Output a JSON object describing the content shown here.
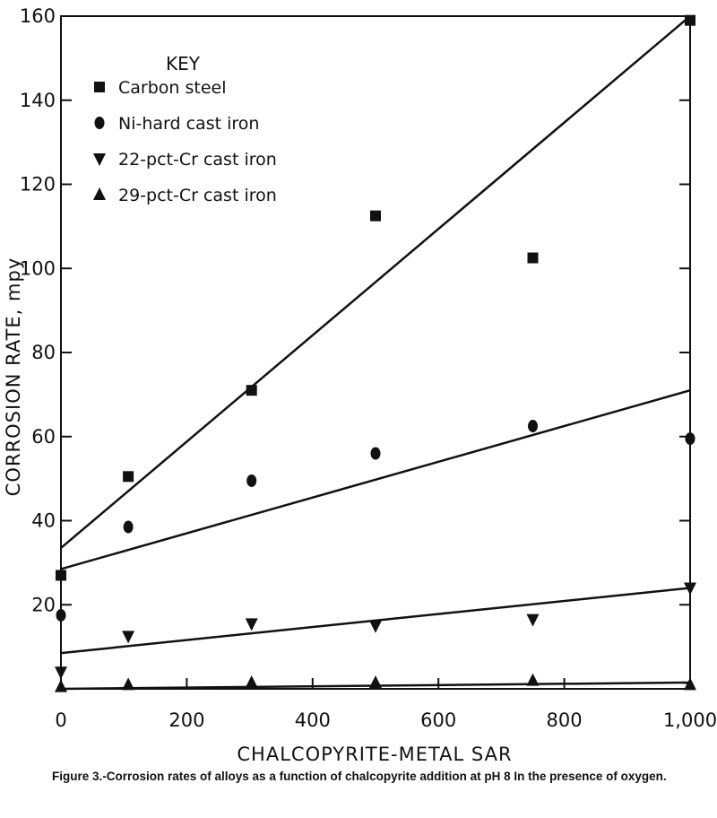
{
  "chart_data": {
    "type": "scatter",
    "xlabel": "CHALCOPYRITE-METAL SAR",
    "ylabel": "CORROSION RATE, mpy",
    "xlim": [
      0,
      1000
    ],
    "ylim": [
      0,
      160
    ],
    "x_ticks": [
      0,
      200,
      400,
      600,
      800,
      1000
    ],
    "x_tick_labels": [
      "0",
      "200",
      "400",
      "600",
      "800",
      "1,000"
    ],
    "y_ticks": [
      20,
      40,
      60,
      80,
      100,
      120,
      140,
      160
    ],
    "y_tick_labels": [
      "20",
      "40",
      "60",
      "80",
      "100",
      "120",
      "140",
      "160"
    ],
    "legend_title": "KEY",
    "legend_position": "top-left",
    "grid": false,
    "series": [
      {
        "name": "Carbon steel",
        "marker": "square",
        "points": [
          [
            0,
            27
          ],
          [
            107,
            50.5
          ],
          [
            303,
            71
          ],
          [
            500,
            112.5
          ],
          [
            750,
            102.5
          ],
          [
            1000,
            159
          ]
        ],
        "fit_line": [
          [
            0,
            33.5
          ],
          [
            1000,
            160
          ]
        ]
      },
      {
        "name": "Ni-hard cast iron",
        "marker": "circle",
        "points": [
          [
            0,
            17.5
          ],
          [
            107,
            38.5
          ],
          [
            303,
            49.5
          ],
          [
            500,
            56
          ],
          [
            750,
            62.5
          ],
          [
            1000,
            59.5
          ]
        ],
        "fit_line": [
          [
            0,
            28.5
          ],
          [
            1000,
            71
          ]
        ]
      },
      {
        "name": "22-pct-Cr cast iron",
        "marker": "triangle-down",
        "points": [
          [
            0,
            4
          ],
          [
            107,
            12.5
          ],
          [
            303,
            15.5
          ],
          [
            500,
            15
          ],
          [
            750,
            16.5
          ],
          [
            1000,
            24
          ]
        ],
        "fit_line": [
          [
            0,
            8.5
          ],
          [
            1000,
            24
          ]
        ]
      },
      {
        "name": "29-pct-Cr cast iron",
        "marker": "triangle-up",
        "points": [
          [
            0,
            0.5
          ],
          [
            107,
            1
          ],
          [
            303,
            1.5
          ],
          [
            500,
            1.5
          ],
          [
            750,
            2
          ],
          [
            1000,
            1
          ]
        ],
        "fit_line": [
          [
            0,
            0
          ],
          [
            1000,
            1.5
          ]
        ]
      }
    ]
  },
  "caption": "Figure 3.-Corrosion rates of alloys as a function of chalcopyrite addition at pH 8 In the presence of oxygen."
}
